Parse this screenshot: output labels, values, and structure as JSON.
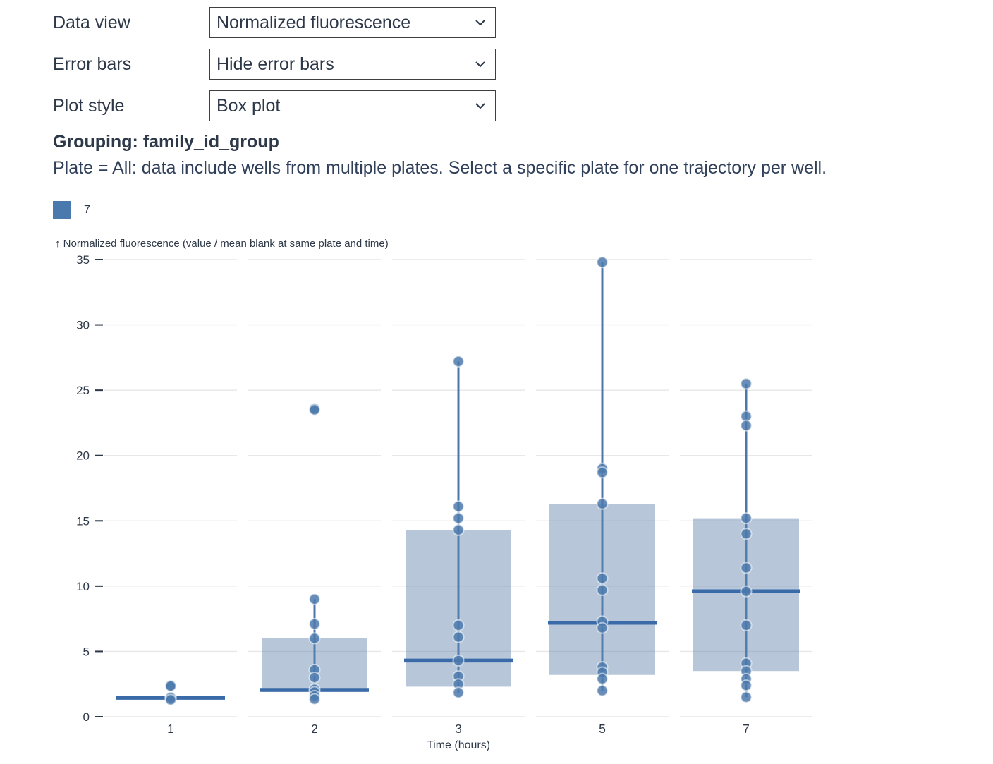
{
  "controls": {
    "rows": [
      {
        "label": "Data view",
        "value": "Normalized fluorescence"
      },
      {
        "label": "Error bars",
        "value": "Hide error bars"
      },
      {
        "label": "Plot style",
        "value": "Box plot"
      }
    ]
  },
  "grouping": {
    "text": "Grouping: family_id_group"
  },
  "note": {
    "text": "Plate = All: data include wells from multiple plates. Select a specific plate for one trajectory per well."
  },
  "legend": {
    "items": [
      {
        "label": "7",
        "color": "#4a7aad"
      }
    ]
  },
  "colors": {
    "accent": "#4a7aad",
    "box_fill": "rgba(95,131,171,0.45)",
    "median": "#3a6ba8",
    "whisker": "#4a78ad",
    "point": "#4c79ac",
    "point_halo": "rgba(255,255,255,0.55)",
    "grid": "#e7e7e7",
    "text": "#2d3848"
  },
  "chart_data": {
    "type": "box",
    "title": "",
    "categories": [
      "1",
      "2",
      "3",
      "5",
      "7"
    ],
    "xlabel": "Time (hours)",
    "ylabel": "↑ Normalized fluorescence (value / mean blank at same plate and time)",
    "ylim": [
      0,
      35
    ],
    "yticks": [
      0,
      5,
      10,
      15,
      20,
      25,
      30,
      35
    ],
    "grid": true,
    "legend_position": "top-left",
    "boxes": [
      {
        "category": "1",
        "q1": 1.35,
        "median": 1.45,
        "q3": 1.5,
        "whisker_low": 1.3,
        "whisker_high": 1.5,
        "points": [
          2.4,
          2.35,
          1.5,
          1.45,
          1.3
        ]
      },
      {
        "category": "2",
        "q1": 1.9,
        "median": 2.05,
        "q3": 6.0,
        "whisker_low": 1.35,
        "whisker_high": 9.0,
        "points": [
          23.6,
          23.5,
          9.0,
          7.1,
          6.0,
          3.6,
          3.0,
          2.1,
          1.9,
          1.6,
          1.35
        ]
      },
      {
        "category": "3",
        "q1": 2.3,
        "median": 4.3,
        "q3": 14.3,
        "whisker_low": 1.85,
        "whisker_high": 27.2,
        "points": [
          27.2,
          16.1,
          15.2,
          14.3,
          7.0,
          6.1,
          4.3,
          3.1,
          2.5,
          1.85
        ]
      },
      {
        "category": "5",
        "q1": 3.2,
        "median": 7.2,
        "q3": 16.3,
        "whisker_low": 2.0,
        "whisker_high": 34.8,
        "points": [
          34.8,
          19.0,
          18.7,
          16.3,
          10.6,
          9.7,
          7.3,
          6.8,
          3.8,
          3.4,
          2.9,
          2.0
        ]
      },
      {
        "category": "7",
        "q1": 3.5,
        "median": 9.6,
        "q3": 15.2,
        "whisker_low": 1.5,
        "whisker_high": 25.5,
        "points": [
          25.5,
          23.0,
          22.3,
          15.2,
          14.0,
          11.4,
          9.6,
          7.0,
          4.1,
          3.5,
          2.9,
          2.4,
          1.5
        ]
      }
    ]
  }
}
